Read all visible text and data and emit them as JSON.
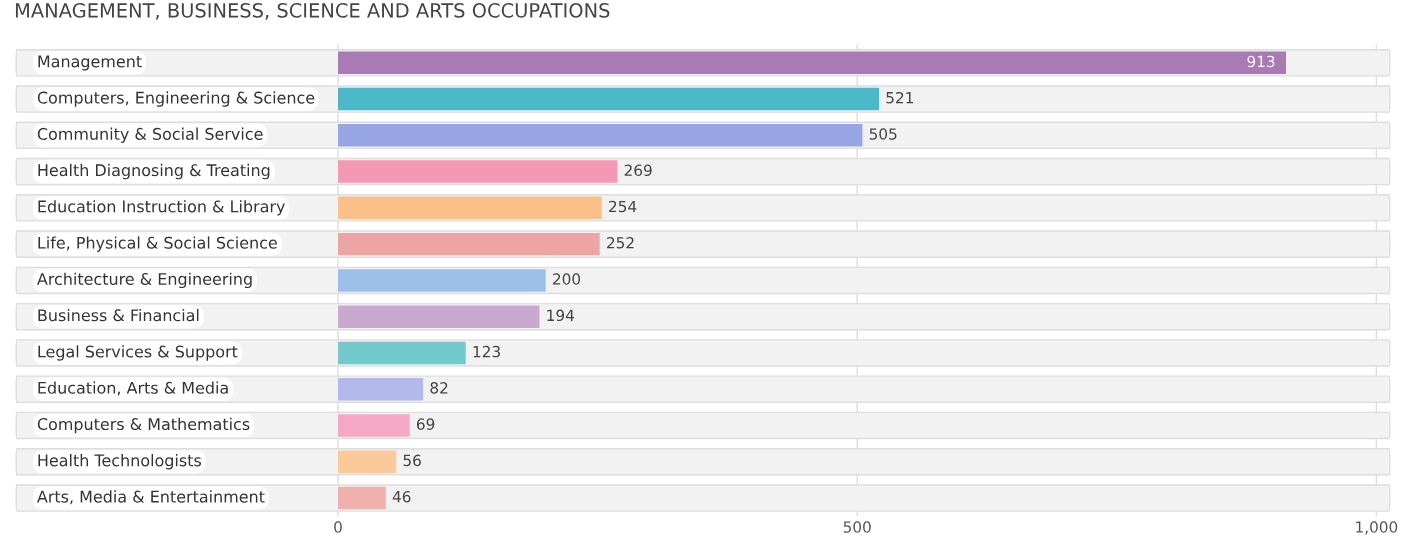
{
  "chart_data": {
    "type": "bar",
    "orientation": "horizontal",
    "title": "MANAGEMENT, BUSINESS, SCIENCE AND ARTS OCCUPATIONS",
    "categories": [
      "Management",
      "Computers, Engineering & Science",
      "Community & Social Service",
      "Health Diagnosing & Treating",
      "Education Instruction & Library",
      "Life, Physical & Social Science",
      "Architecture & Engineering",
      "Business & Financial",
      "Legal Services & Support",
      "Education, Arts & Media",
      "Computers & Mathematics",
      "Health Technologists",
      "Arts, Media & Entertainment"
    ],
    "values": [
      913,
      521,
      505,
      269,
      254,
      252,
      200,
      194,
      123,
      82,
      69,
      56,
      46
    ],
    "colors": [
      "#a97bb5",
      "#4db8c8",
      "#97a5e2",
      "#f598b5",
      "#f9c08a",
      "#eca5a3",
      "#9cc0e9",
      "#c9a9d0",
      "#72cacd",
      "#b3b9ec",
      "#f4a8c4",
      "#fbc99a",
      "#f0b1ad"
    ],
    "xlim": [
      -312,
      1015
    ],
    "xticks": [
      0,
      500,
      {
        "value": 1000,
        "label": "1,000"
      }
    ],
    "grid": "x",
    "data_labels": true
  }
}
